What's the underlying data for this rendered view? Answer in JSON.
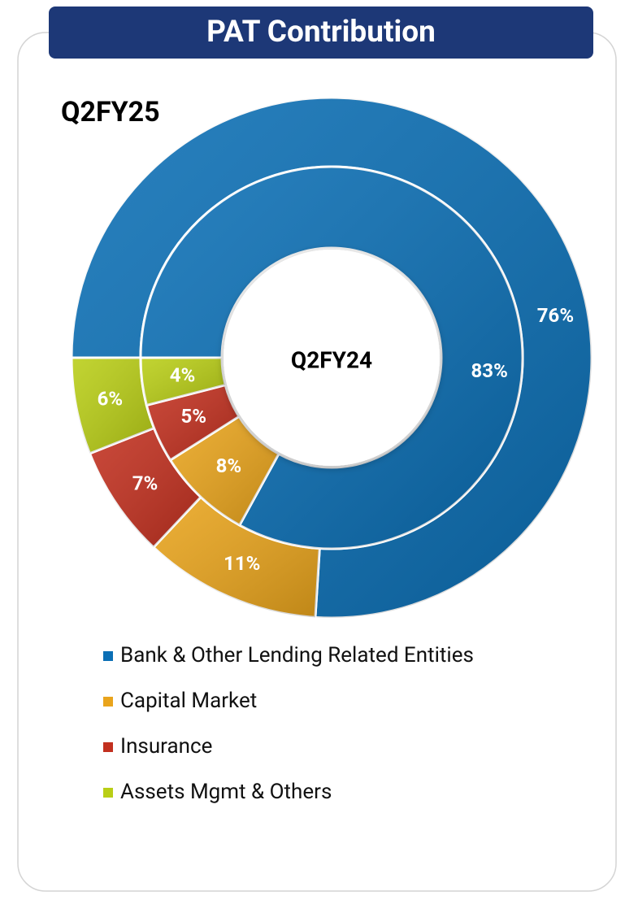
{
  "chart_data": {
    "type": "donut",
    "title": "PAT Contribution",
    "categories": [
      "Bank & Other Lending Related Entities",
      "Capital Market",
      "Insurance",
      "Assets Mgmt & Others"
    ],
    "colors": [
      "#0b6fb5",
      "#e9a41c",
      "#c2301f",
      "#b9ce16"
    ],
    "series": [
      {
        "name": "Q2FY25",
        "values": [
          76,
          11,
          7,
          6
        ],
        "value_labels": [
          "76%",
          "11%",
          "7%",
          "6%"
        ]
      },
      {
        "name": "Q2FY24",
        "values": [
          83,
          8,
          5,
          4
        ],
        "value_labels": [
          "83%",
          "8%",
          "5%",
          "4%"
        ]
      }
    ]
  }
}
